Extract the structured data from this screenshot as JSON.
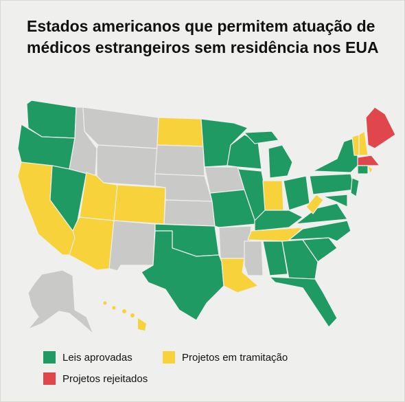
{
  "title": "Estados americanos que permitem atuação de médicos estrangeiros sem residência nos EUA",
  "legend": [
    {
      "label": "Leis aprovadas",
      "color": "#1f9a63"
    },
    {
      "label": "Projetos em tramitação",
      "color": "#f7d23a"
    },
    {
      "label": "Projetos rejeitados",
      "color": "#e0474c"
    }
  ]
}
